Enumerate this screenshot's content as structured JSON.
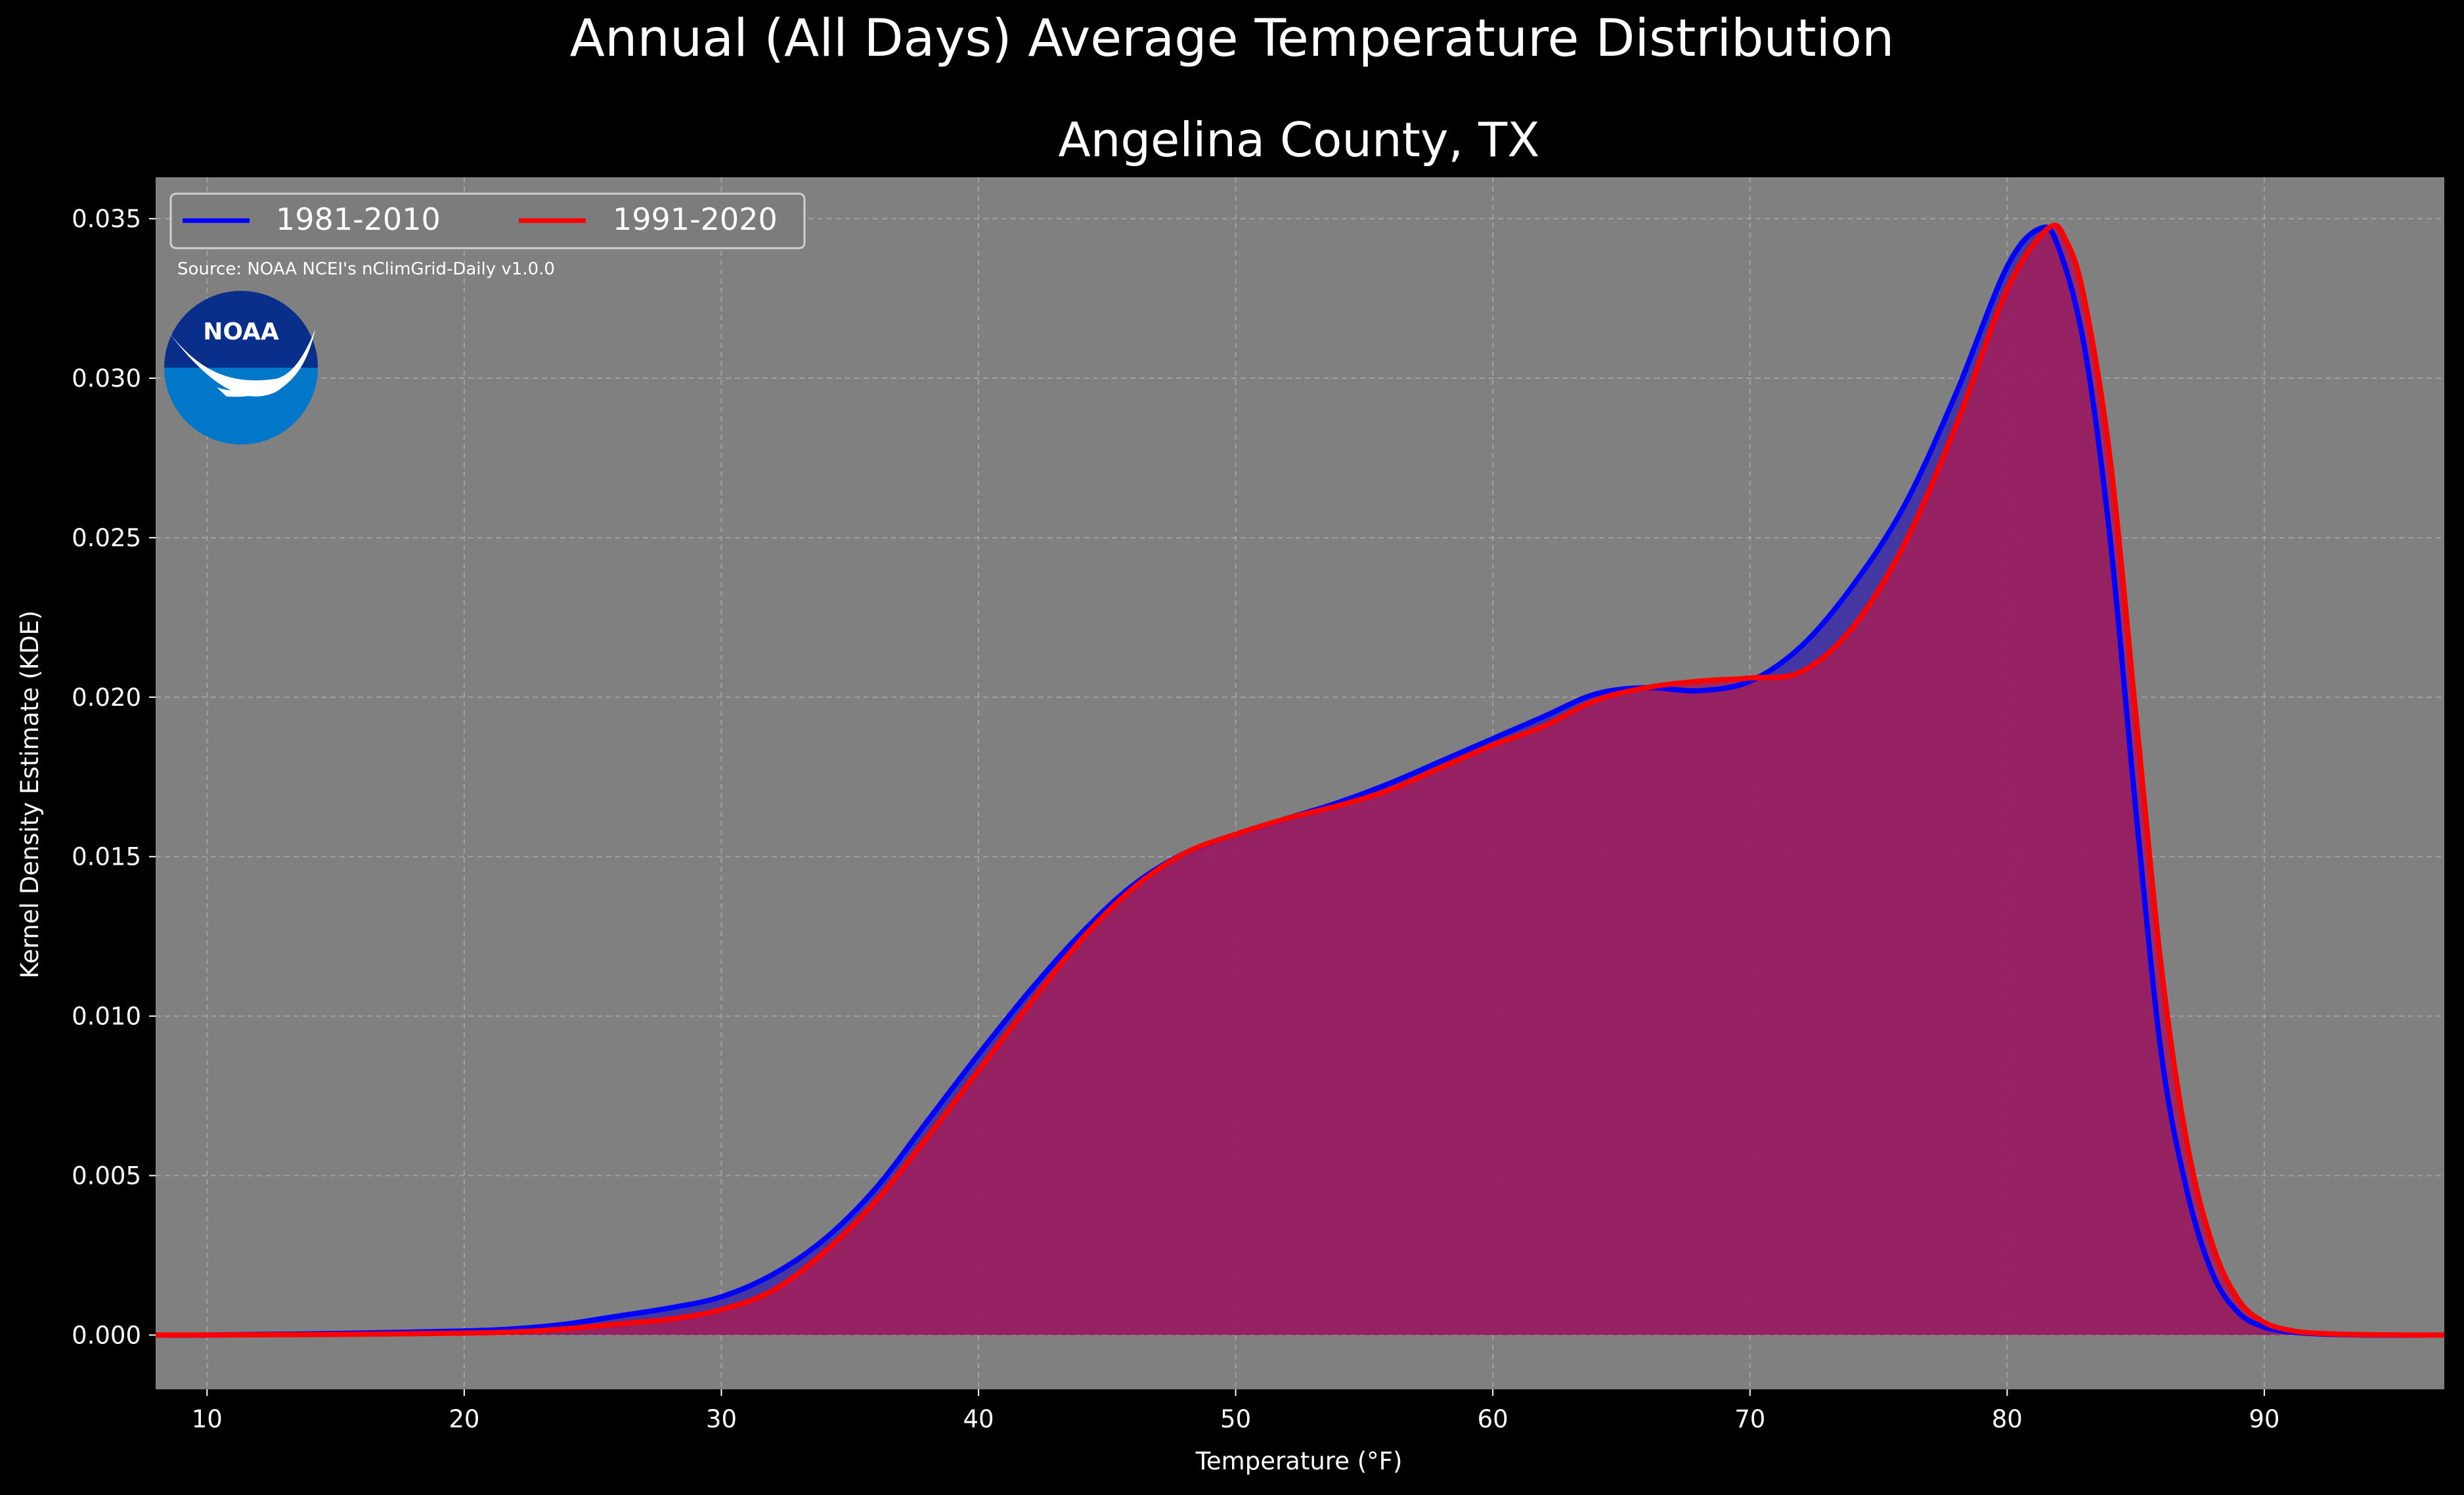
{
  "suptitle": "Annual (All Days) Average Temperature Distribution",
  "source_note": "Source: NOAA NCEI's nClimGrid-Daily v1.0.0",
  "logo": {
    "icon": "noaa-logo",
    "text": "NOAA",
    "colors": {
      "outer": "#0077c8",
      "inner": "#0a2f8a",
      "wave": "#ffffff"
    }
  },
  "colors": {
    "background": "#000000",
    "plot_bg": "#808080",
    "text": "#ffffff",
    "grid": "#b8b8b8"
  },
  "chart_data": {
    "type": "area",
    "title": "Angelina County, TX",
    "xlabel": "Temperature (°F)",
    "ylabel": "Kernel Density Estimate (KDE)",
    "xlim": [
      8,
      97
    ],
    "ylim": [
      -0.0017,
      0.0363
    ],
    "xticks": [
      10,
      20,
      30,
      40,
      50,
      60,
      70,
      80,
      90
    ],
    "yticks": [
      0.0,
      0.005,
      0.01,
      0.015,
      0.02,
      0.025,
      0.03,
      0.035
    ],
    "ytick_labels": [
      "0.000",
      "0.005",
      "0.010",
      "0.015",
      "0.020",
      "0.025",
      "0.030",
      "0.035"
    ],
    "grid": true,
    "legend": {
      "placement": "upper-left",
      "ncol": 2
    },
    "series": [
      {
        "name": "1981-2010",
        "color": "#0000ff",
        "fill": "#3a2aa8",
        "x": [
          8,
          10,
          15,
          20,
          22,
          24,
          26,
          28,
          30,
          32,
          34,
          36,
          38,
          40,
          42,
          44,
          46,
          48,
          50,
          52,
          54,
          56,
          58,
          60,
          62,
          64,
          66,
          68,
          70,
          72,
          74,
          76,
          78,
          80,
          81.3,
          82,
          83,
          84,
          85,
          86,
          87,
          88,
          89,
          90,
          91,
          92,
          94,
          97
        ],
        "y": [
          0.0,
          0.0,
          5e-05,
          0.00013,
          0.0002,
          0.00035,
          0.0006,
          0.00085,
          0.0012,
          0.0019,
          0.003,
          0.0046,
          0.0067,
          0.0088,
          0.0108,
          0.0126,
          0.0141,
          0.0151,
          0.0157,
          0.0162,
          0.0167,
          0.0173,
          0.018,
          0.0187,
          0.0194,
          0.0201,
          0.0203,
          0.0202,
          0.0205,
          0.0216,
          0.0235,
          0.026,
          0.0295,
          0.0335,
          0.0347,
          0.0341,
          0.031,
          0.025,
          0.0165,
          0.0088,
          0.0045,
          0.0019,
          0.0007,
          0.00025,
          0.0001,
          4e-05,
          0.0,
          0.0
        ]
      },
      {
        "name": "1991-2020",
        "color": "#ff0000",
        "fill": "#9e1f5c",
        "x": [
          8,
          10,
          15,
          20,
          22,
          24,
          26,
          28,
          30,
          32,
          34,
          36,
          38,
          40,
          42,
          44,
          46,
          48,
          50,
          52,
          54,
          56,
          58,
          60,
          62,
          64,
          66,
          68,
          70,
          72,
          74,
          76,
          78,
          80,
          81.6,
          82.3,
          83,
          84,
          85,
          86,
          87,
          88,
          89,
          90,
          91,
          92,
          94,
          97
        ],
        "y": [
          0.0,
          0.0,
          2e-05,
          6e-05,
          0.0001,
          0.0002,
          0.00035,
          0.0005,
          0.0008,
          0.0014,
          0.0026,
          0.0042,
          0.0062,
          0.0083,
          0.0104,
          0.0124,
          0.014,
          0.0151,
          0.0157,
          0.0162,
          0.0166,
          0.0171,
          0.0178,
          0.0185,
          0.0191,
          0.0199,
          0.0203,
          0.0205,
          0.0206,
          0.0208,
          0.0222,
          0.0248,
          0.0285,
          0.0328,
          0.0347,
          0.0343,
          0.0325,
          0.0275,
          0.0195,
          0.0115,
          0.006,
          0.0028,
          0.0011,
          0.0004,
          0.00015,
          6e-05,
          1e-05,
          0.0
        ]
      }
    ]
  }
}
